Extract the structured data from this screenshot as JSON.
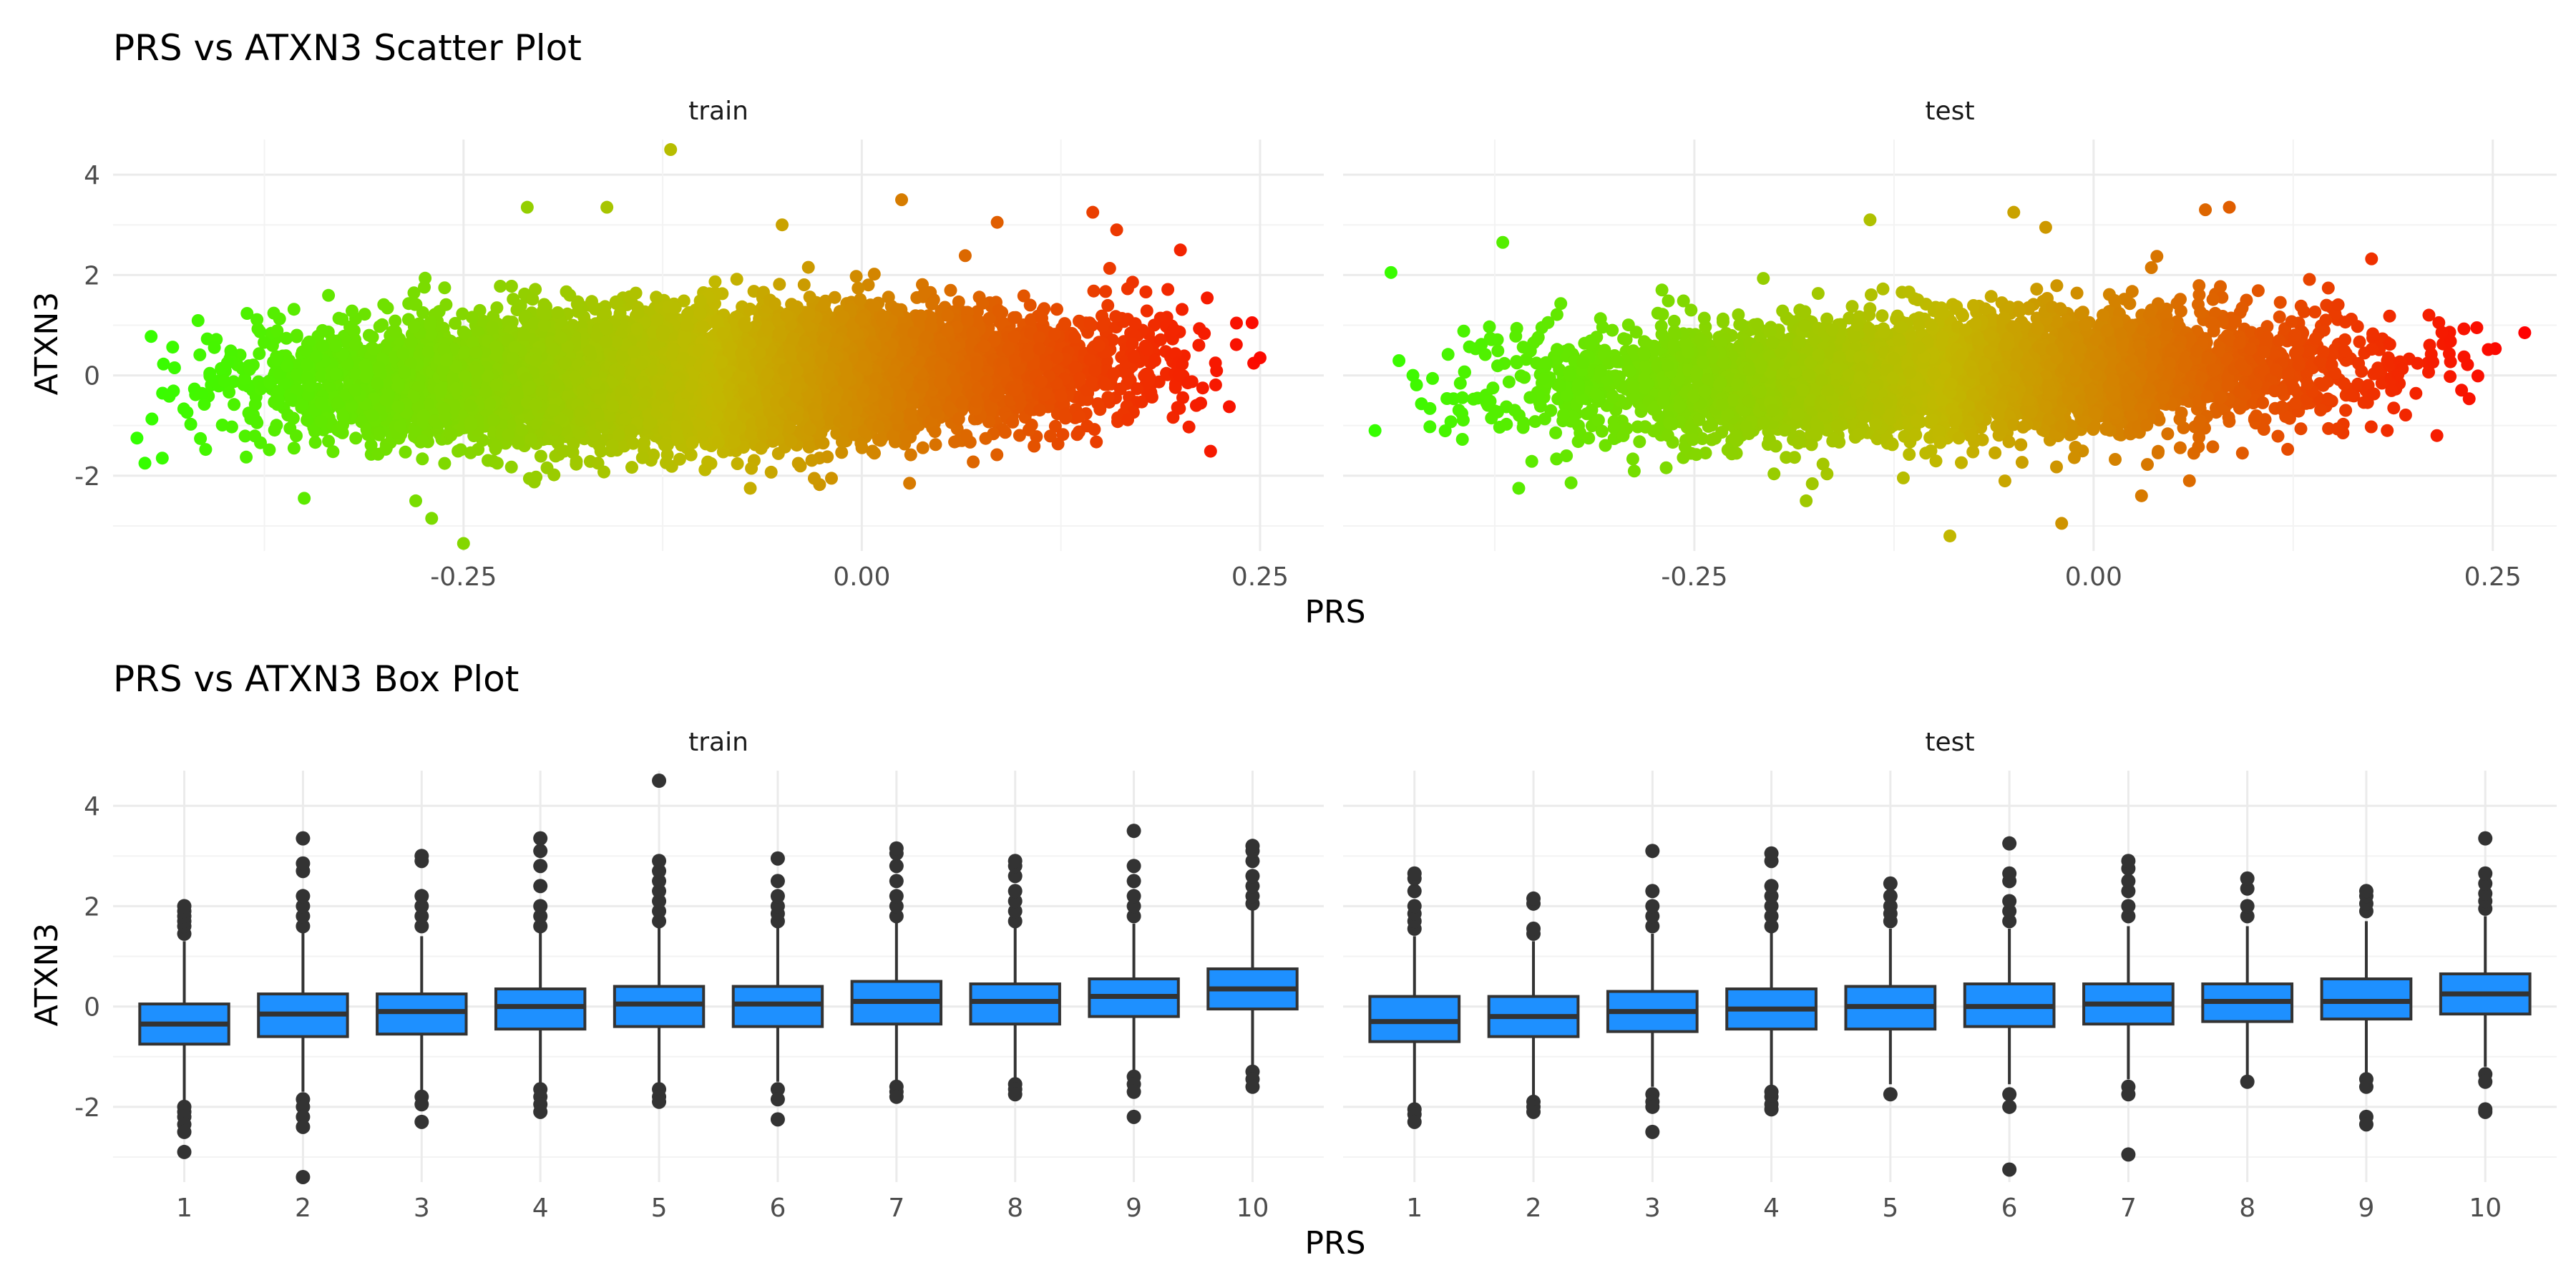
{
  "chart_data": [
    {
      "type": "scatter",
      "title": "PRS vs ATXN3 Scatter Plot",
      "xlabel": "PRS",
      "ylabel": "ATXN3",
      "facets": [
        "train",
        "test"
      ],
      "xlim": [
        -0.47,
        0.29
      ],
      "ylim": [
        -3.5,
        4.7
      ],
      "xticks": [
        -0.25,
        0.0,
        0.25
      ],
      "xtick_labels": [
        "-0.25",
        "0.00",
        "0.25"
      ],
      "yticks": [
        -2,
        0,
        2,
        4
      ],
      "ytick_labels": [
        "-2",
        "0",
        "2",
        "4"
      ],
      "grid": true,
      "color_scale": {
        "low": "#33ff00",
        "mid": "#c2b800",
        "high": "#ff0000",
        "encodes": "x"
      },
      "series": [
        {
          "facet": "train",
          "x_range": [
            -0.455,
            0.25
          ],
          "y_median_at_x_min": -0.25,
          "y_median_at_x_max": 0.25,
          "approx_points": 9000,
          "outliers": [
            {
              "x": -0.12,
              "y": 4.5
            },
            {
              "x": -0.21,
              "y": 3.35
            },
            {
              "x": -0.16,
              "y": 3.35
            },
            {
              "x": 0.025,
              "y": 3.5
            },
            {
              "x": -0.05,
              "y": 3.0
            },
            {
              "x": 0.085,
              "y": 3.05
            },
            {
              "x": 0.145,
              "y": 3.25
            },
            {
              "x": 0.16,
              "y": 2.9
            },
            {
              "x": 0.2,
              "y": 2.5
            },
            {
              "x": 0.25,
              "y": 0.35
            },
            {
              "x": 0.245,
              "y": 1.05
            },
            {
              "x": 0.21,
              "y": -0.6
            },
            {
              "x": -0.455,
              "y": -1.25
            },
            {
              "x": -0.45,
              "y": -1.75
            },
            {
              "x": -0.35,
              "y": -2.45
            },
            {
              "x": -0.28,
              "y": -2.5
            },
            {
              "x": -0.27,
              "y": -2.85
            },
            {
              "x": -0.25,
              "y": -3.35
            },
            {
              "x": -0.07,
              "y": -2.25
            },
            {
              "x": 0.03,
              "y": -2.15
            }
          ]
        },
        {
          "facet": "test",
          "x_range": [
            -0.45,
            0.27
          ],
          "y_median_at_x_min": -0.25,
          "y_median_at_x_max": 0.25,
          "approx_points": 4500,
          "outliers": [
            {
              "x": 0.27,
              "y": 0.85
            },
            {
              "x": 0.24,
              "y": 0.95
            },
            {
              "x": 0.21,
              "y": 1.2
            },
            {
              "x": 0.215,
              "y": -1.2
            },
            {
              "x": 0.07,
              "y": 3.3
            },
            {
              "x": 0.085,
              "y": 3.35
            },
            {
              "x": -0.05,
              "y": 3.25
            },
            {
              "x": -0.03,
              "y": 2.95
            },
            {
              "x": -0.14,
              "y": 3.1
            },
            {
              "x": -0.37,
              "y": 2.65
            },
            {
              "x": -0.44,
              "y": 2.05
            },
            {
              "x": -0.45,
              "y": -1.1
            },
            {
              "x": -0.36,
              "y": -2.25
            },
            {
              "x": -0.09,
              "y": -3.2
            },
            {
              "x": -0.02,
              "y": -2.95
            },
            {
              "x": -0.18,
              "y": -2.5
            },
            {
              "x": 0.03,
              "y": -2.4
            },
            {
              "x": 0.06,
              "y": -2.1
            }
          ]
        }
      ]
    },
    {
      "type": "box",
      "title": "PRS vs ATXN3 Box Plot",
      "xlabel": "PRS",
      "ylabel": "ATXN3",
      "facets": [
        "train",
        "test"
      ],
      "categories": [
        "1",
        "2",
        "3",
        "4",
        "5",
        "6",
        "7",
        "8",
        "9",
        "10"
      ],
      "ylim": [
        -3.5,
        4.7
      ],
      "yticks": [
        -2,
        0,
        2,
        4
      ],
      "ytick_labels": [
        "-2",
        "0",
        "2",
        "4"
      ],
      "box_color": "#1e90ff",
      "grid": true,
      "series": [
        {
          "facet": "train",
          "boxes": [
            {
              "q1": -0.75,
              "median": -0.35,
              "q3": 0.05,
              "whisker_low": -1.95,
              "whisker_high": 1.3,
              "outliers_low": [
                -2.0,
                -2.1,
                -2.2,
                -2.35,
                -2.5,
                -2.9
              ],
              "outliers_high": [
                1.45,
                1.6,
                1.7,
                1.8,
                1.9,
                2.0
              ]
            },
            {
              "q1": -0.6,
              "median": -0.15,
              "q3": 0.25,
              "whisker_low": -1.7,
              "whisker_high": 1.5,
              "outliers_low": [
                -1.85,
                -2.0,
                -2.2,
                -2.4,
                -3.4
              ],
              "outliers_high": [
                1.6,
                1.8,
                2.0,
                2.2,
                2.7,
                2.85,
                3.35
              ]
            },
            {
              "q1": -0.55,
              "median": -0.1,
              "q3": 0.25,
              "whisker_low": -1.7,
              "whisker_high": 1.4,
              "outliers_low": [
                -1.8,
                -1.95,
                -2.3
              ],
              "outliers_high": [
                1.6,
                1.8,
                2.0,
                2.2,
                2.9,
                3.0
              ]
            },
            {
              "q1": -0.45,
              "median": 0.0,
              "q3": 0.35,
              "whisker_low": -1.55,
              "whisker_high": 1.5,
              "outliers_low": [
                -1.65,
                -1.8,
                -1.95,
                -2.1
              ],
              "outliers_high": [
                1.6,
                1.8,
                2.0,
                2.4,
                2.8,
                3.1,
                3.35
              ]
            },
            {
              "q1": -0.4,
              "median": 0.05,
              "q3": 0.4,
              "whisker_low": -1.55,
              "whisker_high": 1.6,
              "outliers_low": [
                -1.65,
                -1.8,
                -1.9
              ],
              "outliers_high": [
                1.7,
                1.9,
                2.1,
                2.3,
                2.5,
                2.7,
                2.9,
                4.5
              ]
            },
            {
              "q1": -0.4,
              "median": 0.05,
              "q3": 0.4,
              "whisker_low": -1.5,
              "whisker_high": 1.6,
              "outliers_low": [
                -1.65,
                -1.85,
                -2.25
              ],
              "outliers_high": [
                1.7,
                1.85,
                2.0,
                2.2,
                2.5,
                2.95
              ]
            },
            {
              "q1": -0.35,
              "median": 0.1,
              "q3": 0.5,
              "whisker_low": -1.5,
              "whisker_high": 1.7,
              "outliers_low": [
                -1.6,
                -1.7,
                -1.8
              ],
              "outliers_high": [
                1.8,
                2.0,
                2.2,
                2.5,
                2.8,
                3.05,
                3.15
              ]
            },
            {
              "q1": -0.35,
              "median": 0.1,
              "q3": 0.45,
              "whisker_low": -1.45,
              "whisker_high": 1.6,
              "outliers_low": [
                -1.55,
                -1.65,
                -1.75
              ],
              "outliers_high": [
                1.7,
                1.9,
                2.1,
                2.3,
                2.6,
                2.8,
                2.9
              ]
            },
            {
              "q1": -0.2,
              "median": 0.2,
              "q3": 0.55,
              "whisker_low": -1.3,
              "whisker_high": 1.65,
              "outliers_low": [
                -1.4,
                -1.55,
                -1.7,
                -2.2
              ],
              "outliers_high": [
                1.8,
                2.0,
                2.2,
                2.5,
                2.8,
                3.5
              ]
            },
            {
              "q1": -0.05,
              "median": 0.35,
              "q3": 0.75,
              "whisker_low": -1.2,
              "whisker_high": 1.95,
              "outliers_low": [
                -1.3,
                -1.45,
                -1.6
              ],
              "outliers_high": [
                2.05,
                2.2,
                2.4,
                2.6,
                2.9,
                3.1,
                3.2
              ]
            }
          ]
        },
        {
          "facet": "test",
          "boxes": [
            {
              "q1": -0.7,
              "median": -0.3,
              "q3": 0.2,
              "whisker_low": -1.95,
              "whisker_high": 1.4,
              "outliers_low": [
                -2.05,
                -2.15,
                -2.3
              ],
              "outliers_high": [
                1.55,
                1.7,
                1.85,
                2.0,
                2.3,
                2.55,
                2.65
              ]
            },
            {
              "q1": -0.6,
              "median": -0.2,
              "q3": 0.2,
              "whisker_low": -1.8,
              "whisker_high": 1.3,
              "outliers_low": [
                -1.9,
                -2.0,
                -2.1
              ],
              "outliers_high": [
                1.45,
                1.55,
                2.05,
                2.15
              ]
            },
            {
              "q1": -0.5,
              "median": -0.1,
              "q3": 0.3,
              "whisker_low": -1.6,
              "whisker_high": 1.45,
              "outliers_low": [
                -1.75,
                -1.9,
                -2.0,
                -2.5
              ],
              "outliers_high": [
                1.6,
                1.8,
                2.0,
                2.3,
                3.1
              ]
            },
            {
              "q1": -0.45,
              "median": -0.05,
              "q3": 0.35,
              "whisker_low": -1.6,
              "whisker_high": 1.5,
              "outliers_low": [
                -1.7,
                -1.8,
                -1.95,
                -2.05
              ],
              "outliers_high": [
                1.6,
                1.8,
                2.0,
                2.2,
                2.4,
                2.9,
                3.05
              ]
            },
            {
              "q1": -0.45,
              "median": 0.0,
              "q3": 0.4,
              "whisker_low": -1.55,
              "whisker_high": 1.55,
              "outliers_low": [
                -1.75
              ],
              "outliers_high": [
                1.7,
                1.85,
                2.0,
                2.2,
                2.45
              ]
            },
            {
              "q1": -0.4,
              "median": 0.0,
              "q3": 0.45,
              "whisker_low": -1.55,
              "whisker_high": 1.55,
              "outliers_low": [
                -1.75,
                -2.0,
                -3.25
              ],
              "outliers_high": [
                1.7,
                1.9,
                2.1,
                2.5,
                2.65,
                3.25
              ]
            },
            {
              "q1": -0.35,
              "median": 0.05,
              "q3": 0.45,
              "whisker_low": -1.45,
              "whisker_high": 1.6,
              "outliers_low": [
                -1.6,
                -1.75,
                -2.95
              ],
              "outliers_high": [
                1.8,
                2.0,
                2.3,
                2.5,
                2.75,
                2.9
              ]
            },
            {
              "q1": -0.3,
              "median": 0.1,
              "q3": 0.45,
              "whisker_low": -1.4,
              "whisker_high": 1.6,
              "outliers_low": [
                -1.5
              ],
              "outliers_high": [
                1.8,
                2.0,
                2.35,
                2.55
              ]
            },
            {
              "q1": -0.25,
              "median": 0.1,
              "q3": 0.55,
              "whisker_low": -1.35,
              "whisker_high": 1.7,
              "outliers_low": [
                -1.45,
                -1.6,
                -2.2,
                -2.35
              ],
              "outliers_high": [
                1.9,
                2.05,
                2.2,
                2.3
              ]
            },
            {
              "q1": -0.15,
              "median": 0.25,
              "q3": 0.65,
              "whisker_low": -1.2,
              "whisker_high": 1.8,
              "outliers_low": [
                -1.35,
                -1.5,
                -2.05,
                -2.1
              ],
              "outliers_high": [
                1.95,
                2.1,
                2.25,
                2.45,
                2.65,
                3.35
              ]
            }
          ]
        }
      ]
    }
  ]
}
